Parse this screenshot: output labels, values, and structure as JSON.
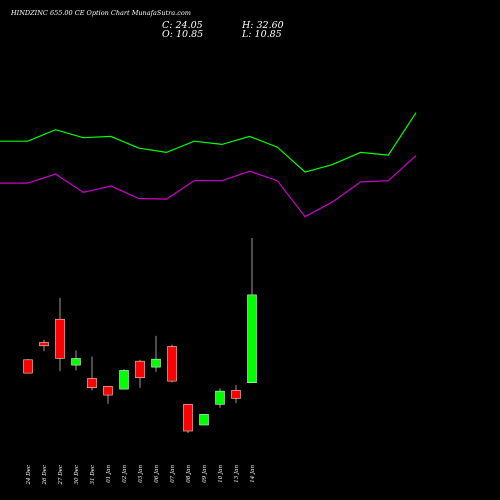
{
  "header": {
    "title": "HINDZINC 655.00 CE Option Chart MunafaSutra.com",
    "close_label": "C: 24.05",
    "open_label": "O: 10.85",
    "high_label": "H: 32.60",
    "low_label": "L: 10.85"
  },
  "colors": {
    "background": "#000000",
    "up": "#00ff00",
    "down": "#ff0000",
    "upper_line": "#00ff00",
    "lower_line": "#cc00cc",
    "text": "#ffffff"
  },
  "chart_data": {
    "type": "candlestick",
    "title": "HINDZINC 655.00 CE Option Chart MunafaSutra.com",
    "categories": [
      "24 Dec",
      "26 Dec",
      "27 Dec",
      "30 Dec",
      "31 Dec",
      "01 Jan",
      "02 Jan",
      "03 Jan",
      "06 Jan",
      "07 Jan",
      "08 Jan",
      "09 Jan",
      "10 Jan",
      "13 Jan",
      "14 Jan"
    ],
    "candles": [
      {
        "open": 14.3,
        "high": 14.4,
        "low": 12.3,
        "close": 12.3,
        "color": "down"
      },
      {
        "open": 16.9,
        "high": 17.3,
        "low": 15.6,
        "close": 16.4,
        "color": "down"
      },
      {
        "open": 20.4,
        "high": 23.6,
        "low": 12.6,
        "close": 14.5,
        "color": "down"
      },
      {
        "open": 13.5,
        "high": 15.7,
        "low": 12.7,
        "close": 14.5,
        "color": "up"
      },
      {
        "open": 11.5,
        "high": 14.8,
        "low": 9.7,
        "close": 10.1,
        "color": "down"
      },
      {
        "open": 10.3,
        "high": 10.3,
        "low": 7.7,
        "close": 9.0,
        "color": "down"
      },
      {
        "open": 9.9,
        "high": 12.9,
        "low": 9.9,
        "close": 12.7,
        "color": "up"
      },
      {
        "open": 14.1,
        "high": 14.3,
        "low": 10.1,
        "close": 11.6,
        "color": "down"
      },
      {
        "open": 13.2,
        "high": 17.9,
        "low": 12.5,
        "close": 14.4,
        "color": "up"
      },
      {
        "open": 16.3,
        "high": 16.6,
        "low": 10.9,
        "close": 11.1,
        "color": "down"
      },
      {
        "open": 7.6,
        "high": 7.6,
        "low": 3.3,
        "close": 3.6,
        "color": "down"
      },
      {
        "open": 4.5,
        "high": 6.1,
        "low": 4.5,
        "close": 6.1,
        "color": "up"
      },
      {
        "open": 7.6,
        "high": 10.0,
        "low": 7.1,
        "close": 9.6,
        "color": "up"
      },
      {
        "open": 9.7,
        "high": 10.5,
        "low": 7.8,
        "close": 8.5,
        "color": "down"
      },
      {
        "open": 10.85,
        "high": 32.6,
        "low": 10.85,
        "close": 24.05,
        "color": "up"
      }
    ],
    "upper_line": [
      48.3,
      48.3,
      52.6,
      49.6,
      50.1,
      45.7,
      44.1,
      48.3,
      47.1,
      50.1,
      46.1,
      36.7,
      39.6,
      44.1,
      43.1,
      59.0
    ],
    "lower_line": [
      32.6,
      32.6,
      36.0,
      29.1,
      31.5,
      26.8,
      26.6,
      33.5,
      33.5,
      37.0,
      33.5,
      20.0,
      25.6,
      33.0,
      33.5,
      42.9
    ],
    "indicator_ylim": [
      0,
      75
    ],
    "price_ylim": [
      0,
      35
    ]
  }
}
